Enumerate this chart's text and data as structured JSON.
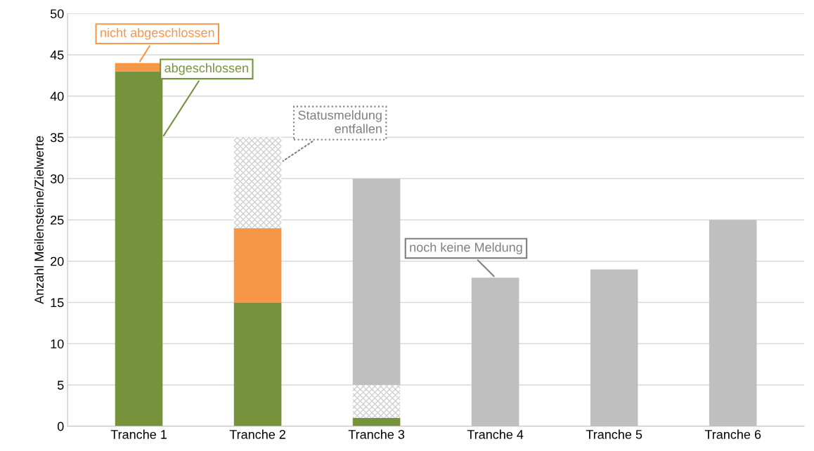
{
  "chart_data": {
    "type": "bar",
    "stacked": true,
    "ylabel": "Anzahl Meilensteine/Zielwerte",
    "categories": [
      "Tranche 1",
      "Tranche 2",
      "Tranche 3",
      "Tranche 4",
      "Tranche 5",
      "Tranche 6"
    ],
    "series": [
      {
        "name": "abgeschlossen",
        "color": "#76923c",
        "values": [
          43,
          15,
          1,
          0,
          0,
          0
        ]
      },
      {
        "name": "nicht abgeschlossen",
        "color": "#f79646",
        "values": [
          1,
          9,
          0,
          0,
          0,
          0
        ]
      },
      {
        "name": "Statusmeldung\nentfallen",
        "color": "#d0d0d0",
        "line_style": "dotted",
        "values": [
          0,
          11,
          4,
          0,
          0,
          0
        ]
      },
      {
        "name": "noch keine Meldung",
        "color": "#bfbfbf",
        "values": [
          0,
          0,
          25,
          18,
          19,
          25
        ]
      }
    ],
    "ylim": [
      0,
      50
    ],
    "yticks": [
      0,
      5,
      10,
      15,
      20,
      25,
      30,
      35,
      40,
      45,
      50
    ],
    "grid": "y",
    "legend": false
  }
}
